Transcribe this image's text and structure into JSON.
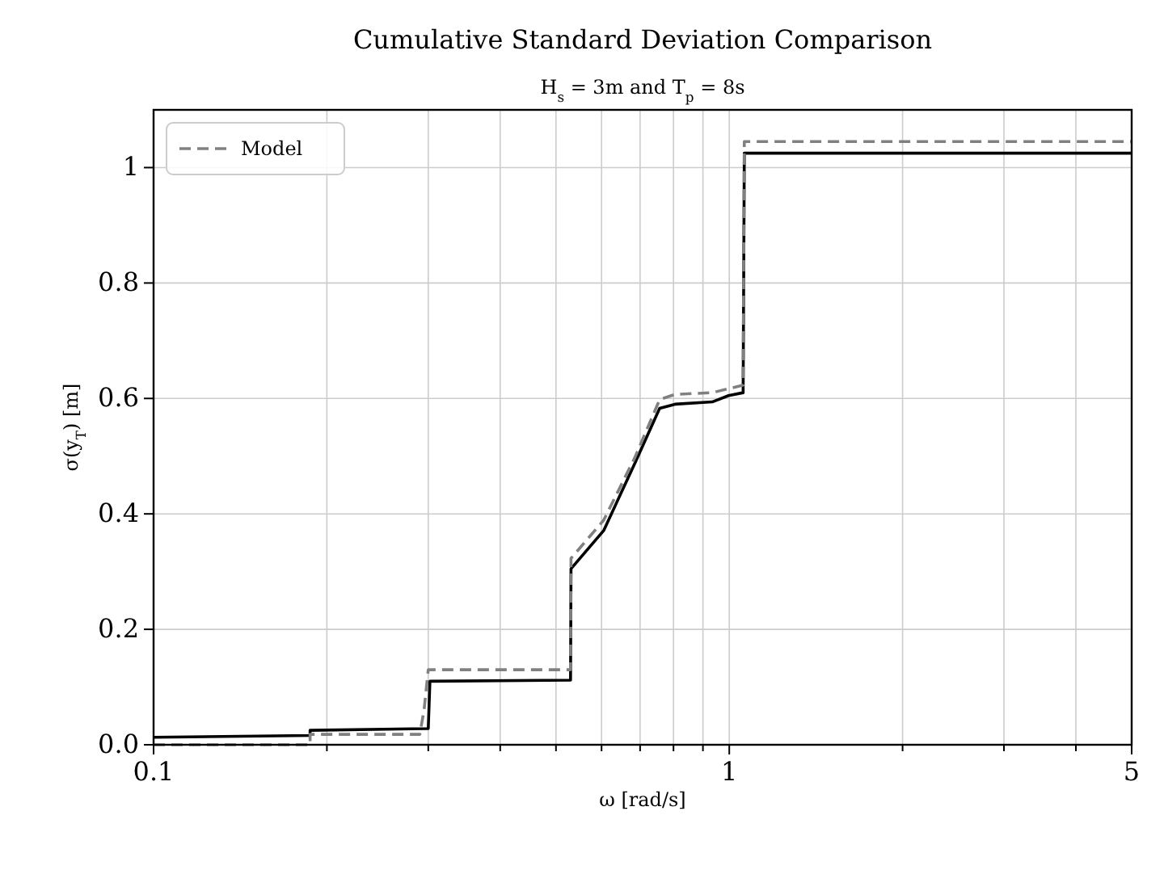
{
  "chart_data": {
    "type": "line",
    "title": "Cumulative Standard Deviation Comparison",
    "subtitle": "H$_{s}$ = 3m and T$_{p}$ = 8s",
    "xlabel": "ω [rad/s]",
    "ylabel": "σ(y$_{T}$) [m]",
    "log": "x",
    "grid": true,
    "legend": "top left",
    "xlim": [
      0.1,
      5
    ],
    "ylim": [
      0,
      1.1
    ],
    "xticks": [
      0.1,
      {
        "value": 0.2,
        "label": null
      },
      {
        "value": 0.3,
        "label": null
      },
      {
        "value": 0.4,
        "label": null
      },
      {
        "value": 0.5,
        "label": null
      },
      {
        "value": 0.6,
        "label": null
      },
      {
        "value": 0.7,
        "label": null
      },
      {
        "value": 0.8,
        "label": null
      },
      {
        "value": 0.9,
        "label": null
      },
      1,
      {
        "value": 2,
        "label": null
      },
      {
        "value": 3,
        "label": null
      },
      {
        "value": 4,
        "label": null
      },
      5
    ],
    "yticks": [
      {
        "value": 0,
        "label": "0.0"
      },
      {
        "value": 0.2,
        "label": "0.2"
      },
      {
        "value": 0.4,
        "label": "0.4"
      },
      {
        "value": 0.6,
        "label": "0.6"
      },
      {
        "value": 0.8,
        "label": "0.8"
      },
      {
        "value": 1,
        "label": "1"
      }
    ],
    "series": [
      {
        "color": "#000000",
        "line_style": "solid",
        "x": [
          0.1,
          0.187,
          0.187,
          0.3,
          0.302,
          0.53,
          0.531,
          0.605,
          0.685,
          0.757,
          0.805,
          0.934,
          0.997,
          1.057,
          1.062,
          5
        ],
        "values": [
          0.013,
          0.016,
          0.025,
          0.028,
          0.11,
          0.112,
          0.305,
          0.371,
          0.487,
          0.583,
          0.59,
          0.594,
          0.605,
          0.61,
          1.025,
          1.025
        ]
      },
      {
        "name": "Model",
        "color": "#808080",
        "line_style": "dashed",
        "x": [
          0.1,
          0.187,
          0.187,
          0.29,
          0.295,
          0.3,
          0.53,
          0.531,
          0.605,
          0.685,
          0.757,
          0.805,
          0.934,
          1.057,
          1.062,
          5
        ],
        "values": [
          0.0,
          0.0,
          0.018,
          0.018,
          0.06,
          0.13,
          0.13,
          0.323,
          0.389,
          0.497,
          0.598,
          0.607,
          0.61,
          0.623,
          1.045,
          1.045
        ]
      }
    ]
  }
}
